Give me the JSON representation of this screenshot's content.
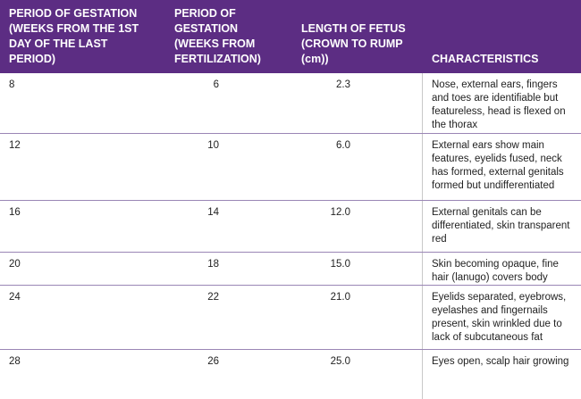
{
  "table": {
    "header": [
      "PERIOD OF GESTATION (WEEKS FROM THE 1ST DAY OF THE LAST PERIOD)",
      "PERIOD OF GESTATION (WEEKS FROM FERTILIZATION)",
      "LENGTH OF FETUS (CROWN TO RUMP (cm))",
      "CHARACTERISTICS"
    ],
    "rows": [
      [
        "8",
        "6",
        "2.3",
        "Nose, external ears, fingers and toes are identifiable but featureless, head is flexed on the thorax"
      ],
      [
        "12",
        "10",
        "6.0",
        "External ears show main features, eyelids fused, neck has formed, external genitals formed but undifferentiated"
      ],
      [
        "16",
        "14",
        "12.0",
        "External genitals can be differentiated, skin transparent red"
      ],
      [
        "20",
        "18",
        "15.0",
        "Skin becoming opaque, fine hair (lanugo) covers body"
      ],
      [
        "24",
        "22",
        "21.0",
        "Eyelids separated, eyebrows, eyelashes and fingernails present, skin wrinkled due to lack of subcutaneous fat"
      ],
      [
        "28",
        "26",
        "25.0",
        "Eyes open, scalp hair growing"
      ]
    ]
  }
}
